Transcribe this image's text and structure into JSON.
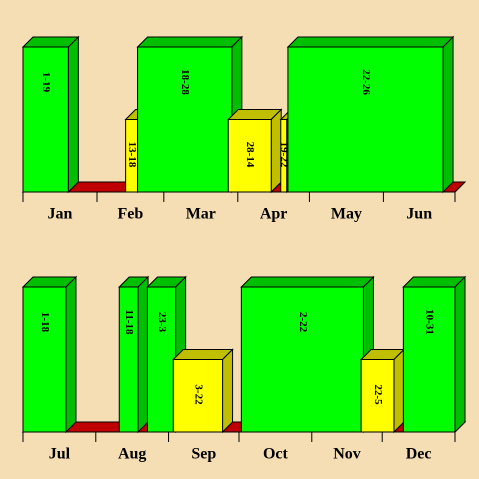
{
  "chart_data": [
    {
      "type": "calendar-box",
      "categories": [
        "Jan",
        "Feb",
        "Mar",
        "Apr",
        "May",
        "Jun"
      ],
      "xlim": [
        0,
        181
      ],
      "xticks": [
        0,
        31,
        59,
        90,
        120,
        151,
        181
      ],
      "ylim": [
        0,
        1
      ],
      "segments": [
        {
          "color": "#ff0000",
          "x": [
            0,
            181
          ],
          "y": 0
        },
        {
          "label": "1-19",
          "color": "#00ff00",
          "x": [
            0,
            19
          ],
          "y": 1
        },
        {
          "label": "13-18",
          "color": "#ffff00",
          "x": [
            43,
            48
          ],
          "y": 0.5
        },
        {
          "label": "18-28",
          "color": "#00ff00",
          "x": [
            48,
            87.5
          ],
          "y": 1
        },
        {
          "label": "28-14",
          "color": "#ffff00",
          "x": [
            86,
            104
          ],
          "y": 0.5
        },
        {
          "label": "19-22",
          "color": "#ffff00",
          "x": [
            108,
            110.5
          ],
          "y": 0.5
        },
        {
          "label": "22-26",
          "color": "#00ff00",
          "x": [
            111,
            176
          ],
          "y": 1
        }
      ]
    },
    {
      "type": "calendar-box",
      "categories": [
        "Jul",
        "Aug",
        "Sep",
        "Oct",
        "Nov",
        "Dec"
      ],
      "xlim": [
        0,
        184
      ],
      "xticks": [
        0,
        31,
        62,
        92,
        123,
        153,
        184
      ],
      "ylim": [
        0,
        1
      ],
      "segments": [
        {
          "color": "#ff0000",
          "x": [
            0,
            184
          ],
          "y": 0
        },
        {
          "label": "1-18",
          "color": "#00ff00",
          "x": [
            0,
            18.3
          ],
          "y": 1
        },
        {
          "label": "11-18",
          "color": "#00ff00",
          "x": [
            41,
            49
          ],
          "y": 1
        },
        {
          "label": "23-3",
          "color": "#00ff00",
          "x": [
            53,
            65
          ],
          "y": 1
        },
        {
          "label": "3-22",
          "color": "#ffff00",
          "x": [
            64,
            85
          ],
          "y": 0.5
        },
        {
          "label": "2-22",
          "color": "#00ff00",
          "x": [
            93,
            145
          ],
          "y": 1
        },
        {
          "label": "22-5",
          "color": "#ffff00",
          "x": [
            144,
            158
          ],
          "y": 0.5
        },
        {
          "label": "10-31",
          "color": "#00ff00",
          "x": [
            162,
            184
          ],
          "y": 1
        }
      ]
    }
  ]
}
